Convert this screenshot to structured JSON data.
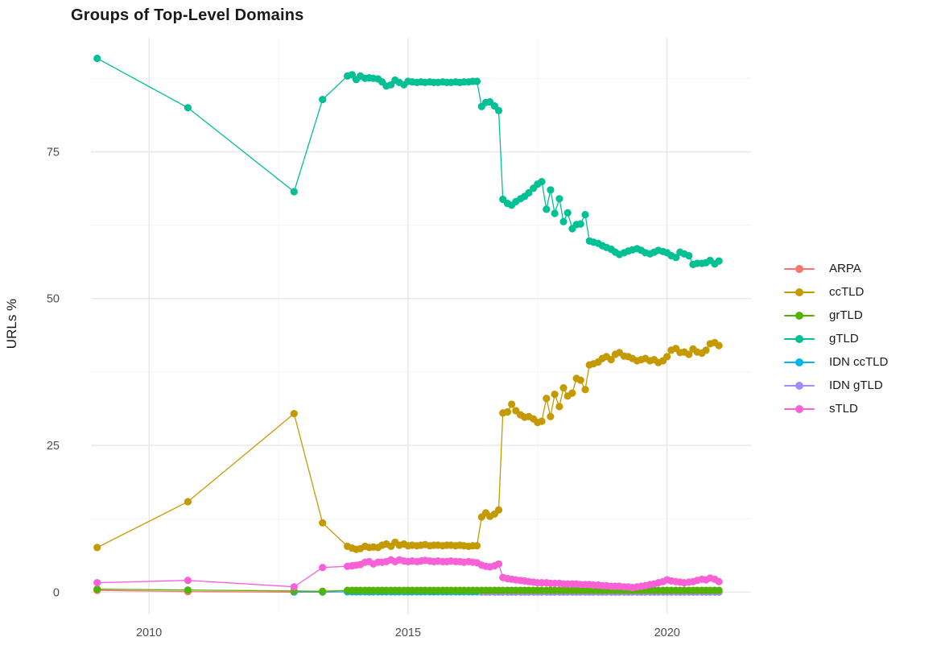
{
  "chart_data": {
    "type": "line",
    "title": "Groups of Top-Level Domains",
    "xlabel": "",
    "ylabel": "URLs %",
    "grid": "on",
    "legend_position": "right",
    "xlim": [
      2008.88,
      2021.62
    ],
    "ylim": [
      -3.8,
      94.4
    ],
    "x_tick_values": [
      2010,
      2015,
      2020
    ],
    "x_tick_labels": [
      "2010",
      "2015",
      "2020"
    ],
    "y_tick_values": [
      0,
      25,
      50,
      75
    ],
    "y_tick_labels": [
      "0",
      "25",
      "50",
      "75"
    ],
    "x_minor": [
      2012.5,
      2017.5
    ],
    "y_minor": [
      12.5,
      37.5,
      62.5,
      87.5
    ],
    "style": {
      "grid_major": "#E8E8E8",
      "grid_minor": "#F4F4F4",
      "tick_label_color": "#4D4D4D",
      "title_color": "#1A1A1A",
      "background": "#FFFFFF"
    },
    "x_monthly": [
      2013.83,
      2013.92,
      2014.0,
      2014.08,
      2014.17,
      2014.25,
      2014.33,
      2014.42,
      2014.5,
      2014.58,
      2014.67,
      2014.75,
      2014.83,
      2014.92,
      2015.0,
      2015.08,
      2015.17,
      2015.25,
      2015.33,
      2015.42,
      2015.5,
      2015.58,
      2015.67,
      2015.75,
      2015.83,
      2015.92,
      2016.0,
      2016.08,
      2016.17,
      2016.25,
      2016.33,
      2016.42,
      2016.5,
      2016.58,
      2016.67,
      2016.75,
      2016.83,
      2016.92,
      2017.0,
      2017.08,
      2017.17,
      2017.25,
      2017.33,
      2017.42,
      2017.5,
      2017.58,
      2017.67,
      2017.75,
      2017.83,
      2017.92,
      2018.0,
      2018.08,
      2018.17,
      2018.25,
      2018.33,
      2018.42,
      2018.5,
      2018.58,
      2018.67,
      2018.75,
      2018.83,
      2018.92,
      2019.0,
      2019.08,
      2019.17,
      2019.25,
      2019.33,
      2019.42,
      2019.5,
      2019.58,
      2019.67,
      2019.75,
      2019.83,
      2019.92,
      2020.0,
      2020.08,
      2020.17,
      2020.25,
      2020.33,
      2020.42,
      2020.5,
      2020.58,
      2020.67,
      2020.75,
      2020.83,
      2020.92,
      2021.0
    ],
    "series": [
      {
        "name": "ARPA",
        "color": "#F8766D",
        "z": 1,
        "early": [
          [
            2009.0,
            0.3
          ],
          [
            2010.75,
            0.1
          ],
          [
            2012.8,
            0.0
          ],
          [
            2013.35,
            0.0
          ]
        ],
        "monthly_const": 0.05,
        "monthly_start": 0
      },
      {
        "name": "ccTLD",
        "color": "#C49A00",
        "z": 5,
        "early": [
          [
            2009.0,
            7.6
          ],
          [
            2010.75,
            15.4
          ],
          [
            2012.8,
            30.4
          ],
          [
            2013.35,
            11.8
          ]
        ],
        "monthly_values": [
          7.8,
          7.5,
          7.3,
          7.4,
          7.8,
          7.6,
          7.7,
          7.6,
          8.0,
          8.2,
          7.8,
          8.5,
          8.0,
          8.2,
          7.9,
          8.0,
          7.9,
          8.0,
          8.1,
          7.9,
          8.0,
          8.0,
          7.9,
          8.0,
          8.0,
          7.9,
          8.0,
          7.9,
          7.8,
          7.9,
          7.9,
          12.8,
          13.5,
          12.9,
          13.3,
          14.0,
          30.5,
          30.7,
          32.0,
          30.9,
          30.2,
          29.8,
          29.9,
          29.5,
          28.9,
          29.1,
          33.0,
          29.9,
          33.7,
          31.6,
          34.8,
          33.4,
          33.9,
          36.4,
          36.1,
          34.5,
          38.7,
          38.9,
          39.2,
          39.8,
          40.1,
          39.6,
          40.5,
          40.8,
          40.2,
          40.1,
          39.8,
          39.4,
          39.6,
          39.8,
          39.4,
          39.6,
          39.1,
          39.4,
          40.1,
          41.2,
          41.5,
          40.8,
          40.9,
          40.5,
          41.4,
          40.9,
          40.7,
          41.2,
          42.3,
          42.5,
          42.0
        ]
      },
      {
        "name": "grTLD",
        "color": "#53B400",
        "z": 4,
        "early": [
          [
            2009.0,
            0.5
          ],
          [
            2010.75,
            0.35
          ],
          [
            2012.8,
            0.2
          ],
          [
            2013.35,
            0.15
          ]
        ],
        "monthly_const": 0.3,
        "monthly_start": 0
      },
      {
        "name": "gTLD",
        "color": "#00C094",
        "z": 6,
        "early": [
          [
            2009.0,
            90.9
          ],
          [
            2010.75,
            82.5
          ],
          [
            2012.8,
            68.2
          ],
          [
            2013.35,
            83.9
          ]
        ],
        "monthly_values": [
          87.9,
          88.1,
          87.3,
          87.9,
          87.5,
          87.6,
          87.5,
          87.4,
          86.9,
          86.2,
          86.4,
          87.2,
          86.8,
          86.4,
          87.0,
          86.9,
          86.8,
          86.9,
          86.8,
          86.9,
          86.8,
          86.8,
          86.9,
          86.8,
          86.8,
          86.9,
          86.8,
          86.9,
          86.9,
          87.0,
          87.0,
          82.7,
          83.4,
          83.5,
          82.8,
          82.0,
          66.9,
          66.2,
          65.9,
          66.5,
          67.0,
          67.4,
          68.0,
          68.8,
          69.5,
          69.9,
          65.2,
          68.5,
          64.5,
          67.0,
          63.1,
          64.6,
          61.9,
          62.6,
          62.7,
          64.3,
          59.8,
          59.6,
          59.4,
          59.0,
          58.7,
          58.4,
          57.9,
          57.5,
          57.8,
          58.1,
          58.3,
          58.5,
          58.2,
          57.8,
          57.6,
          57.9,
          58.2,
          58.0,
          57.8,
          57.3,
          57.0,
          57.9,
          57.6,
          57.3,
          55.8,
          56.0,
          56.0,
          56.1,
          56.5,
          55.9,
          56.4
        ]
      },
      {
        "name": "IDN ccTLD",
        "color": "#00B6EB",
        "z": 2,
        "early": [
          [
            2012.8,
            0.05
          ],
          [
            2013.35,
            0.05
          ]
        ],
        "monthly_const": 0.05,
        "monthly_start": 0
      },
      {
        "name": "IDN gTLD",
        "color": "#A58AFF",
        "z": 3,
        "early": [],
        "monthly_const": 0.0,
        "monthly_start": 31
      },
      {
        "name": "sTLD",
        "color": "#FB61D7",
        "z": 7,
        "early": [
          [
            2009.0,
            1.6
          ],
          [
            2010.75,
            2.0
          ],
          [
            2012.8,
            0.9
          ],
          [
            2013.35,
            4.2
          ]
        ],
        "monthly_values": [
          4.4,
          4.5,
          4.6,
          4.7,
          5.1,
          5.2,
          4.8,
          5.1,
          5.1,
          5.2,
          5.5,
          5.2,
          5.5,
          5.3,
          5.2,
          5.3,
          5.2,
          5.3,
          5.4,
          5.3,
          5.2,
          5.3,
          5.2,
          5.2,
          5.3,
          5.2,
          5.2,
          5.1,
          5.2,
          5.1,
          5.0,
          4.6,
          4.4,
          4.3,
          4.5,
          4.8,
          2.5,
          2.3,
          2.2,
          2.1,
          2.0,
          1.9,
          1.8,
          1.7,
          1.6,
          1.6,
          1.6,
          1.5,
          1.5,
          1.5,
          1.4,
          1.4,
          1.4,
          1.4,
          1.3,
          1.3,
          1.3,
          1.2,
          1.2,
          1.1,
          1.1,
          1.0,
          1.0,
          1.0,
          0.9,
          0.9,
          0.8,
          0.9,
          1.0,
          1.1,
          1.3,
          1.4,
          1.6,
          1.8,
          2.1,
          1.9,
          1.8,
          1.7,
          1.6,
          1.7,
          1.8,
          2.0,
          2.2,
          2.1,
          2.4,
          2.2,
          1.8
        ]
      }
    ]
  }
}
